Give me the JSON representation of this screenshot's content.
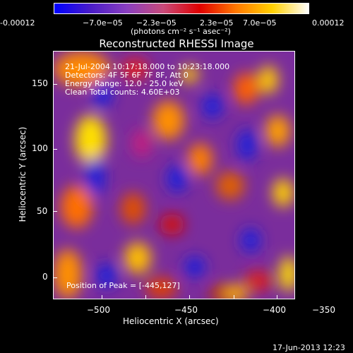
{
  "colorbar": {
    "tick_labels": [
      "-0.00012",
      "−7.0e−05",
      "−2.3e−05",
      "2.3e−05",
      "7.0e−05",
      "0.00012"
    ],
    "unit_label": "(photons cm⁻² s⁻¹ asec⁻²)",
    "colors": [
      "#0000ff",
      "#4a1cc8",
      "#8a3fc0",
      "#c84a7a",
      "#e00000",
      "#ff7800",
      "#ffd000",
      "#ffffff"
    ]
  },
  "image": {
    "title": "Reconstructed RHESSI Image",
    "info_lines": [
      "21-Jul-2004 10:17:18.000 to 10:23:18.000",
      "Detectors: 4F 5F 6F 7F 8F, Att 0",
      "Energy Range: 12.0 - 25.0 keV",
      "Clean    Total counts: 4.60E+03"
    ],
    "peak_label": "Position of Peak = [-445,127]",
    "x_axis_label": "Heliocentric X (arcsec)",
    "y_axis_label": "Heliocentric Y (arcsec)",
    "x_tick_labels": [
      "−500",
      "−450",
      "−400",
      "−350"
    ],
    "y_tick_labels": [
      "0",
      "50",
      "100",
      "150"
    ],
    "footer_date": "17-Jun-2013 12:23"
  }
}
